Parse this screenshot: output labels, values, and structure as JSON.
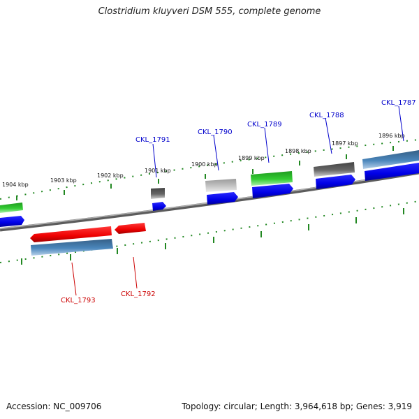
{
  "title": "Clostridium kluyveri DSM 555, complete genome",
  "footer": {
    "accession": "Accession: NC_009706",
    "summary": "Topology: circular; Length: 3,964,618 bp; Genes: 3,919"
  },
  "ticks": [
    "1904 kbp",
    "1903 kbp",
    "1902 kbp",
    "1901 kbp",
    "1900 kbp",
    "1899 kbp",
    "1898 kbp",
    "1897 kbp",
    "1896 kbp"
  ],
  "genes": {
    "forward": [
      "CKL_1791",
      "CKL_1790",
      "CKL_1789",
      "CKL_1788",
      "CKL_1787"
    ],
    "reverse": [
      "CKL_1793",
      "CKL_1792"
    ]
  },
  "colors": {
    "forward_label": "#0000cc",
    "reverse_label": "#cc0000",
    "cds_forward": "#0000ee",
    "cds_reverse": "#ee0000",
    "gene_green": "#33bb33",
    "gene_gray_dark": "#555555",
    "gene_gray_light": "#bbbbbb",
    "gene_steelblue": "#4682b4",
    "tick_green": "#228822",
    "backbone": "#888888"
  }
}
